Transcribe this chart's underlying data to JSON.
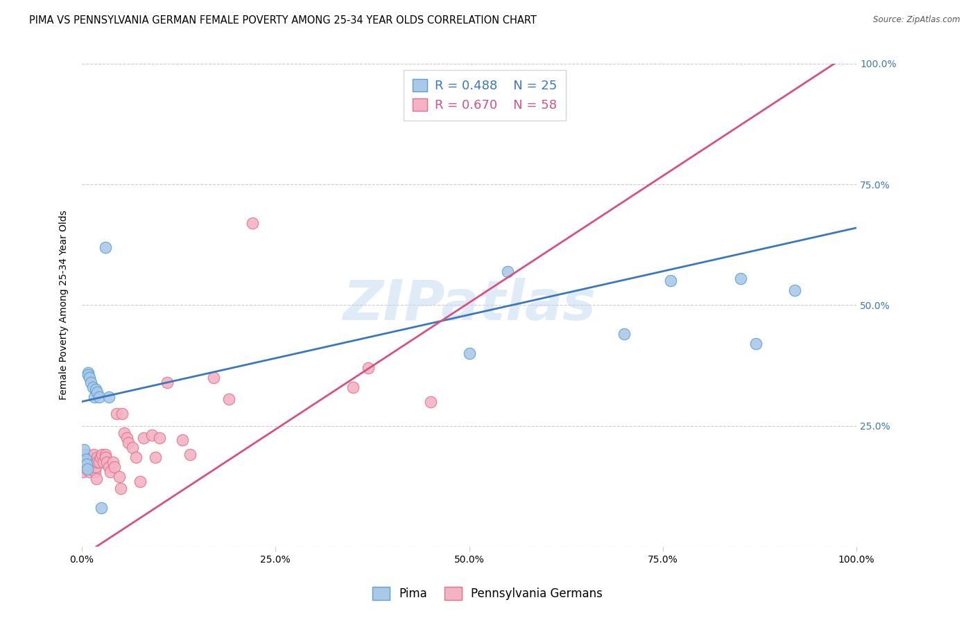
{
  "title": "PIMA VS PENNSYLVANIA GERMAN FEMALE POVERTY AMONG 25-34 YEAR OLDS CORRELATION CHART",
  "source": "Source: ZipAtlas.com",
  "ylabel": "Female Poverty Among 25-34 Year Olds",
  "watermark": "ZIPatlas",
  "xlim": [
    0,
    1.0
  ],
  "ylim": [
    0,
    1.0
  ],
  "xticklabels": [
    "0.0%",
    "25.0%",
    "50.0%",
    "75.0%",
    "100.0%"
  ],
  "yticklabels_right": [
    "",
    "25.0%",
    "50.0%",
    "75.0%",
    "100.0%"
  ],
  "pima_color": "#aac9e8",
  "pima_edge_color": "#5a9fd4",
  "penn_color": "#f4b3c4",
  "penn_edge_color": "#e0708a",
  "pima_r": 0.488,
  "pima_n": 25,
  "penn_r": 0.67,
  "penn_n": 58,
  "pima_line_color": "#3a78bd",
  "penn_line_color": "#d95080",
  "legend_label_pima": "Pima",
  "legend_label_penn": "Pennsylvania Germans",
  "pima_line_intercept": 0.3,
  "pima_line_slope": 0.36,
  "penn_line_intercept": -0.02,
  "penn_line_slope": 1.05,
  "pima_scatter_x": [
    0.002,
    0.003,
    0.004,
    0.005,
    0.006,
    0.007,
    0.008,
    0.008,
    0.01,
    0.012,
    0.014,
    0.016,
    0.018,
    0.02,
    0.022,
    0.025,
    0.03,
    0.035,
    0.5,
    0.55,
    0.7,
    0.76,
    0.85,
    0.87,
    0.92
  ],
  "pima_scatter_y": [
    0.19,
    0.2,
    0.175,
    0.18,
    0.17,
    0.16,
    0.36,
    0.355,
    0.35,
    0.34,
    0.33,
    0.31,
    0.325,
    0.32,
    0.31,
    0.08,
    0.62,
    0.31,
    0.4,
    0.57,
    0.44,
    0.55,
    0.555,
    0.42,
    0.53
  ],
  "penn_scatter_x": [
    0.001,
    0.002,
    0.003,
    0.005,
    0.006,
    0.007,
    0.008,
    0.008,
    0.009,
    0.01,
    0.01,
    0.01,
    0.012,
    0.013,
    0.014,
    0.015,
    0.015,
    0.016,
    0.017,
    0.018,
    0.018,
    0.019,
    0.02,
    0.02,
    0.022,
    0.024,
    0.026,
    0.028,
    0.03,
    0.03,
    0.032,
    0.035,
    0.037,
    0.04,
    0.042,
    0.045,
    0.048,
    0.05,
    0.052,
    0.055,
    0.058,
    0.06,
    0.065,
    0.07,
    0.075,
    0.08,
    0.09,
    0.095,
    0.1,
    0.11,
    0.13,
    0.14,
    0.17,
    0.19,
    0.22,
    0.35,
    0.37,
    0.45
  ],
  "penn_scatter_y": [
    0.155,
    0.165,
    0.175,
    0.185,
    0.19,
    0.16,
    0.175,
    0.165,
    0.17,
    0.175,
    0.16,
    0.155,
    0.165,
    0.175,
    0.16,
    0.19,
    0.175,
    0.165,
    0.155,
    0.175,
    0.165,
    0.14,
    0.185,
    0.175,
    0.175,
    0.185,
    0.19,
    0.175,
    0.19,
    0.185,
    0.175,
    0.165,
    0.155,
    0.175,
    0.165,
    0.275,
    0.145,
    0.12,
    0.275,
    0.235,
    0.225,
    0.215,
    0.205,
    0.185,
    0.135,
    0.225,
    0.23,
    0.185,
    0.225,
    0.34,
    0.22,
    0.19,
    0.35,
    0.305,
    0.67,
    0.33,
    0.37,
    0.3
  ],
  "title_fontsize": 10.5,
  "axis_label_fontsize": 10,
  "tick_fontsize": 10
}
